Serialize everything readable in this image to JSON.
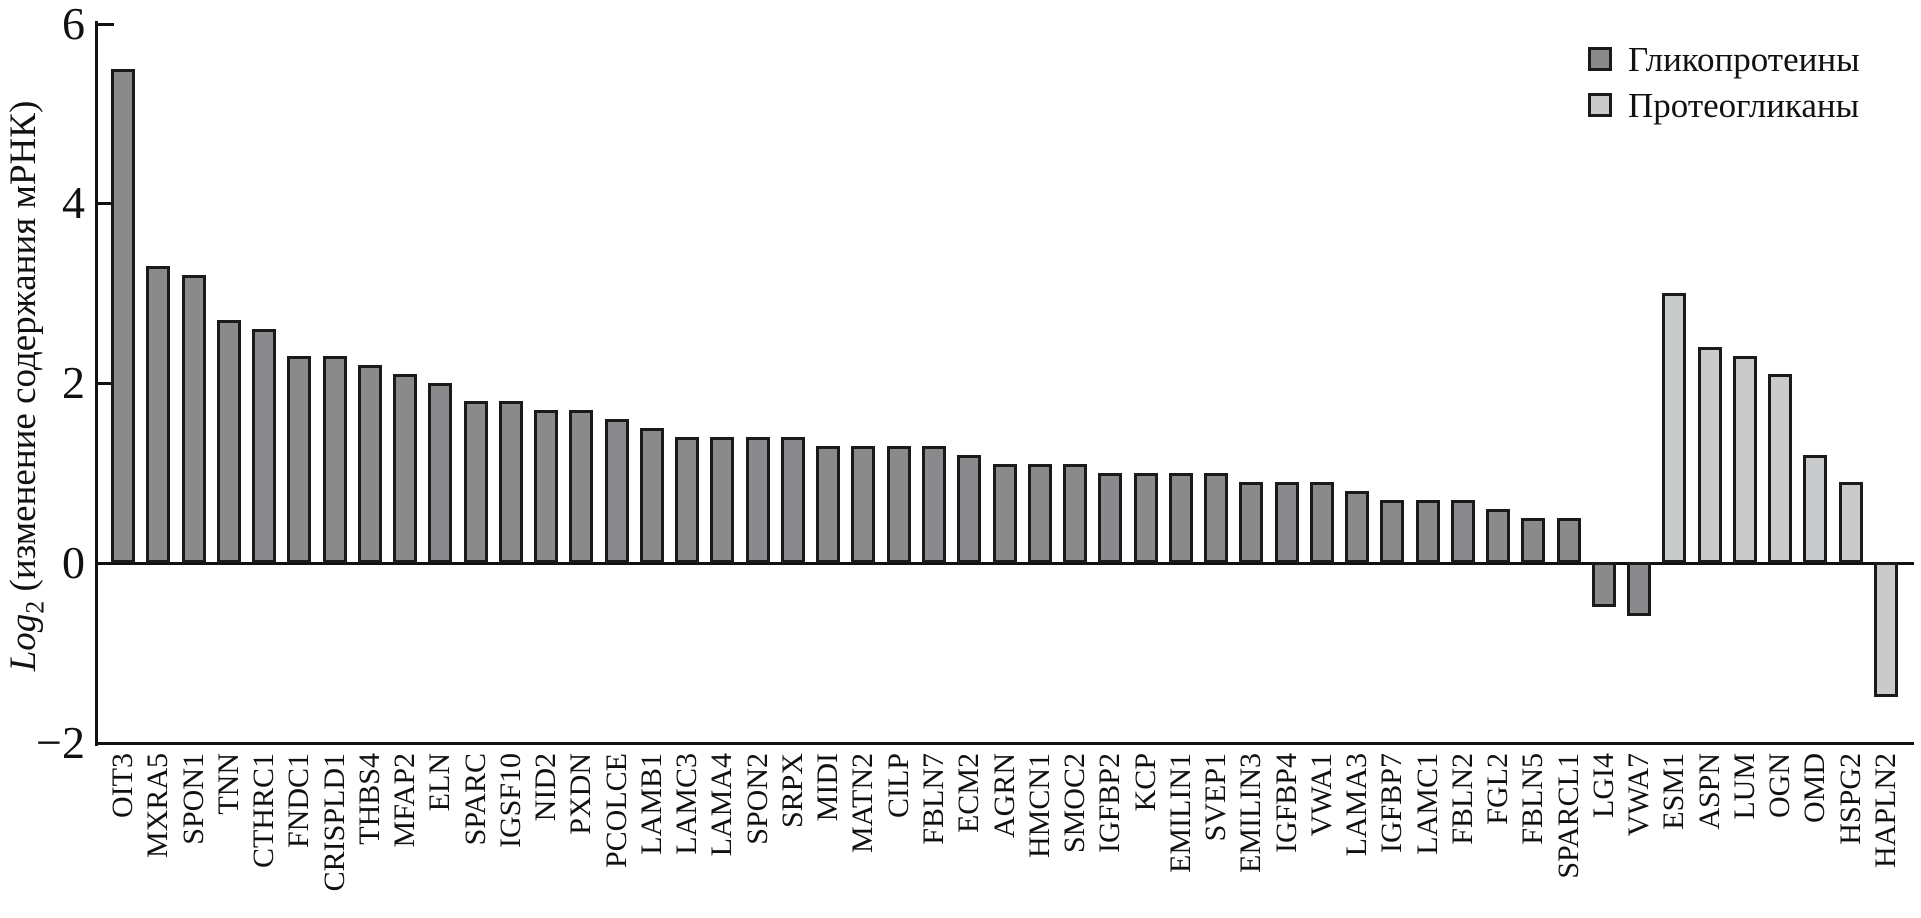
{
  "chart_data": {
    "type": "bar",
    "title": "",
    "ylabel": {
      "italic": "Log",
      "sub": "2",
      "rest": " (изменение содержания мРНК)"
    },
    "ylim": [
      -2,
      6
    ],
    "yticks": [
      {
        "v": 6,
        "label": "6"
      },
      {
        "v": 4,
        "label": "4"
      },
      {
        "v": 2,
        "label": "2"
      },
      {
        "v": 0,
        "label": "0"
      },
      {
        "v": -2,
        "label": "−2"
      }
    ],
    "grid": false,
    "legend_position": "top-right",
    "legend": [
      {
        "label": "Гликопротеины",
        "color": "#8a8a8c"
      },
      {
        "label": "Протеогликаны",
        "color": "#c9cacb"
      }
    ],
    "categories": [
      "OIT3",
      "MXRA5",
      "SPON1",
      "TNN",
      "CTHRC1",
      "FNDC1",
      "CRISPLD1",
      "THBS4",
      "MFAP2",
      "ELN",
      "SPARC",
      "IGSF10",
      "NID2",
      "PXDN",
      "PCOLCE",
      "LAMB1",
      "LAMC3",
      "LAMA4",
      "SPON2",
      "SRPX",
      "MIDI",
      "MATN2",
      "CILP",
      "FBLN7",
      "ECM2",
      "AGRN",
      "HMCN1",
      "SMOC2",
      "IGFBP2",
      "KCP",
      "EMILIN1",
      "SVEP1",
      "EMILIN3",
      "IGFBP4",
      "VWA1",
      "LAMA3",
      "IGFBP7",
      "LAMC1",
      "FBLN2",
      "FGL2",
      "FBLN5",
      "SPARCL1",
      "LGI4",
      "VWA7",
      "ESM1",
      "ASPN",
      "LUM",
      "OGN",
      "OMD",
      "HSPG2",
      "HAPLN2"
    ],
    "values": [
      5.5,
      3.3,
      3.2,
      2.7,
      2.6,
      2.3,
      2.3,
      2.2,
      2.1,
      2.0,
      1.8,
      1.8,
      1.7,
      1.7,
      1.6,
      1.5,
      1.4,
      1.4,
      1.4,
      1.4,
      1.3,
      1.3,
      1.3,
      1.3,
      1.2,
      1.1,
      1.1,
      1.1,
      1.0,
      1.0,
      1.0,
      1.0,
      0.9,
      0.9,
      0.9,
      0.8,
      0.7,
      0.7,
      0.7,
      0.6,
      0.5,
      0.5,
      -0.5,
      -0.6,
      3.0,
      2.4,
      2.3,
      2.1,
      1.2,
      0.9,
      -1.5
    ],
    "groups": [
      0,
      0,
      0,
      0,
      0,
      0,
      0,
      0,
      0,
      0,
      0,
      0,
      0,
      0,
      0,
      0,
      0,
      0,
      0,
      0,
      0,
      0,
      0,
      0,
      0,
      0,
      0,
      0,
      0,
      0,
      0,
      0,
      0,
      0,
      0,
      0,
      0,
      0,
      0,
      0,
      0,
      0,
      0,
      0,
      1,
      1,
      1,
      1,
      1,
      1,
      1
    ]
  },
  "colors": {
    "bar_border": "#1a1a1a",
    "axis": "#111111",
    "background": "#ffffff"
  }
}
